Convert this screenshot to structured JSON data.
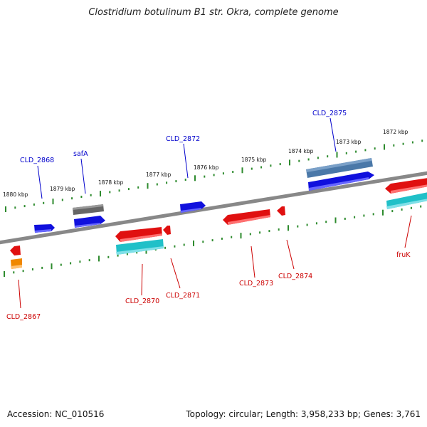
{
  "title": "Clostridium botulinum B1 str. Okra, complete genome",
  "footer": {
    "accession": "Accession: NC_010516",
    "summary": "Topology: circular; Length: 3,958,233 bp; Genes: 3,761"
  },
  "colors": {
    "backbone": "#888888",
    "tick_dots": "#2e8b2e",
    "forward_label": "#0000cc",
    "reverse_label": "#cc0000",
    "gene_red": "#e01010",
    "gene_blue": "#1010dd",
    "gene_cyan": "#20c0c8",
    "gene_steel": "#4a78a8",
    "gene_gray": "#666666",
    "gene_orange": "#f08800"
  },
  "scale_labels": [
    "1880 kbp",
    "1879 kbp",
    "1878 kbp",
    "1877 kbp",
    "1876 kbp",
    "1875 kbp",
    "1874 kbp",
    "1873 kbp",
    "1872 kbp"
  ],
  "gene_labels": {
    "forward": [
      "CLD_2868",
      "safA",
      "CLD_2872",
      "CLD_2875"
    ],
    "reverse": [
      "CLD_2867",
      "CLD_2870",
      "CLD_2871",
      "CLD_2873",
      "CLD_2874",
      "fruK"
    ]
  }
}
